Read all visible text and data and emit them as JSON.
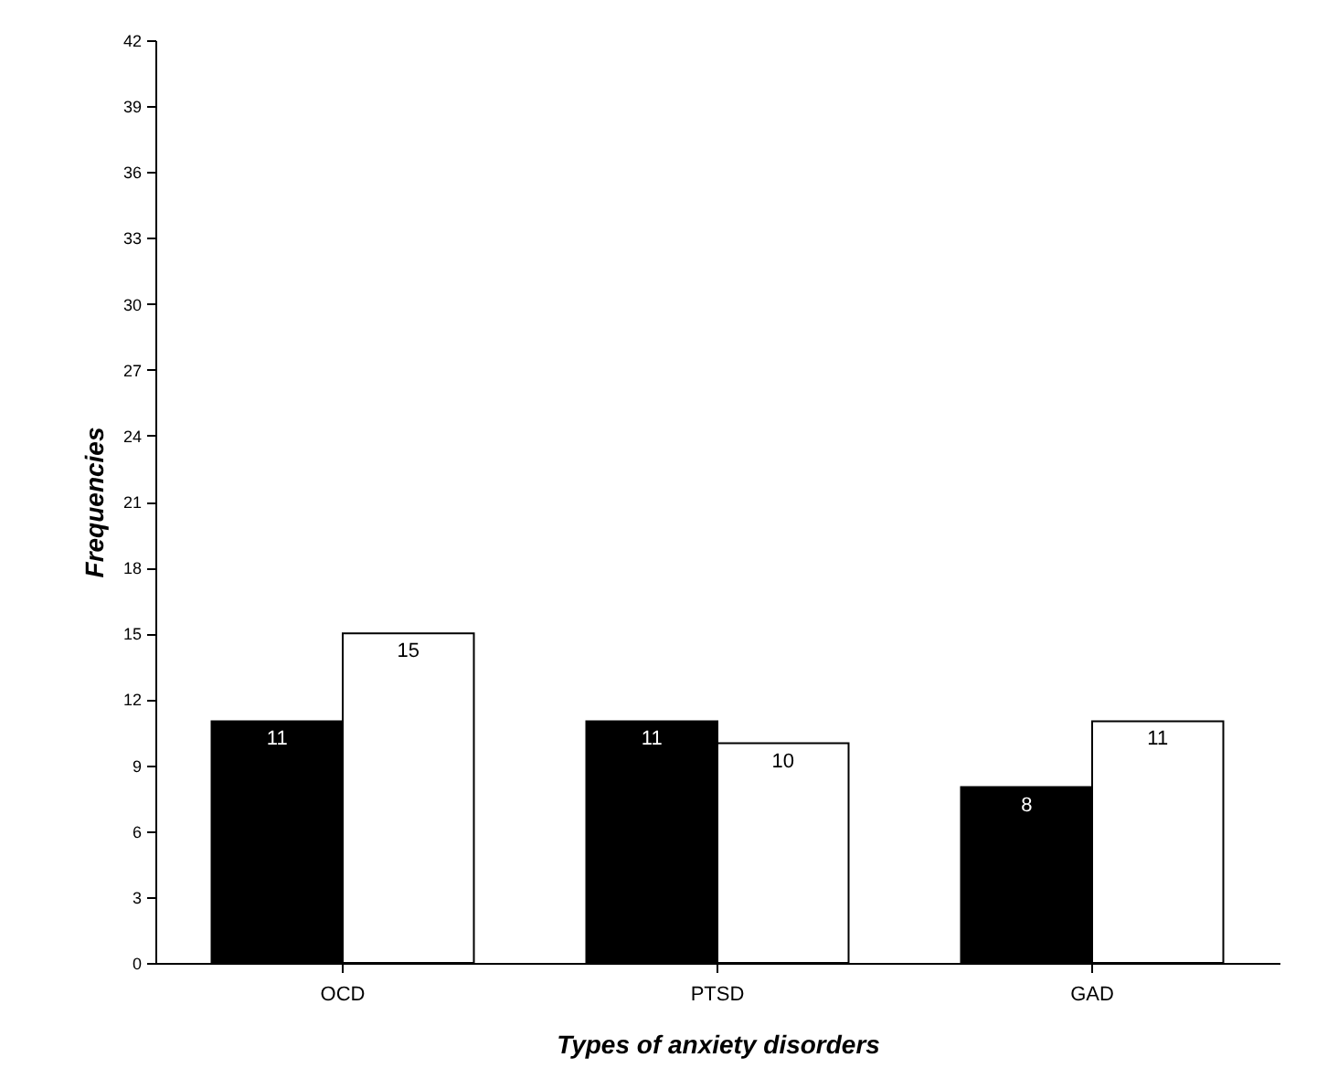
{
  "chart_data": {
    "type": "bar",
    "xlabel": "Types of anxiety disorders",
    "ylabel": "Frequencies",
    "categories": [
      "OCD",
      "PTSD",
      "GAD"
    ],
    "series": [
      {
        "color": "#000000",
        "values": [
          11,
          11,
          8
        ]
      },
      {
        "color": "#ffffff",
        "values": [
          15,
          10,
          11
        ]
      }
    ],
    "ylim": [
      0,
      42
    ],
    "yticks": [
      0,
      3,
      6,
      9,
      12,
      15,
      18,
      21,
      24,
      27,
      30,
      33,
      36,
      39,
      42
    ],
    "grid": false,
    "legend": false,
    "data_labels": true
  }
}
